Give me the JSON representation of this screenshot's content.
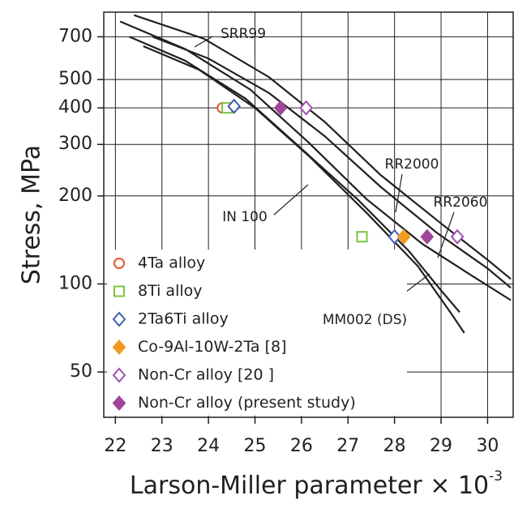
{
  "chart_data": {
    "type": "scatter",
    "ylabel": "Stress, MPa",
    "xlabel": "Larson-Miller parameter × 10",
    "xlabel_superscript": "-3",
    "xlim": [
      21.75,
      30.55
    ],
    "ylim": [
      35,
      850
    ],
    "xticks": [
      22,
      23,
      24,
      25,
      26,
      27,
      28,
      29,
      30
    ],
    "yticks": [
      50,
      100,
      200,
      300,
      400,
      500,
      700
    ],
    "ylog": true,
    "grid": true,
    "legend": "lower left",
    "series": [
      {
        "name": "4Ta alloy",
        "color": "#e8542a",
        "marker": "circle",
        "filled": false,
        "x": [
          24.3
        ],
        "values": [
          400
        ]
      },
      {
        "name": "8Ti alloy",
        "color": "#7cc242",
        "marker": "square",
        "filled": false,
        "x": [
          24.4,
          27.3
        ],
        "values": [
          400,
          145
        ]
      },
      {
        "name": "2Ta6Ti alloy",
        "color": "#3f5fb0",
        "marker": "diamond",
        "filled": false,
        "x": [
          24.55,
          28.0
        ],
        "values": [
          405,
          145
        ]
      },
      {
        "name": "Co-9Al-10W-2Ta [8]",
        "color": "#f39a1e",
        "marker": "diamond",
        "filled": true,
        "x": [
          28.2
        ],
        "values": [
          145
        ]
      },
      {
        "name": "Non-Cr alloy [20 ]",
        "color": "#a050b0",
        "marker": "diamond",
        "filled": false,
        "x": [
          26.1,
          29.35
        ],
        "values": [
          400,
          145
        ]
      },
      {
        "name": "Non-Cr alloy (present study)",
        "color": "#a0459a",
        "marker": "diamond",
        "filled": true,
        "x": [
          25.55,
          28.7
        ],
        "values": [
          400,
          145
        ]
      }
    ],
    "curves": [
      {
        "name": "SRR99",
        "color": "#231f20",
        "x": [
          22.4,
          23.9,
          25.3,
          26.5,
          27.7,
          29.0,
          30.0,
          30.5
        ],
        "values": [
          830,
          690,
          510,
          358,
          236,
          161,
          121,
          104
        ]
      },
      {
        "name": "RR2000",
        "color": "#231f20",
        "x": [
          22.8,
          24.0,
          25.3,
          26.5,
          27.7,
          28.9,
          30.0,
          30.5
        ],
        "values": [
          700,
          590,
          450,
          320,
          215,
          150,
          113,
          97
        ]
      },
      {
        "name": "RR2060",
        "color": "#231f20",
        "x": [
          22.1,
          23.5,
          24.9,
          26.15,
          27.4,
          28.6,
          29.65,
          30.5
        ],
        "values": [
          790,
          636,
          462,
          305,
          195,
          137,
          107,
          88
        ]
      },
      {
        "name": "IN 100",
        "color": "#231f20",
        "x": [
          22.3,
          23.5,
          24.8,
          26.0,
          27.2,
          28.3,
          29.0,
          29.4
        ],
        "values": [
          700,
          580,
          430,
          290,
          195,
          130,
          95,
          80
        ]
      },
      {
        "name": "MM002 (DS)",
        "color": "#231f20",
        "x": [
          22.6,
          23.8,
          25.0,
          26.2,
          27.4,
          28.5,
          29.2,
          29.5
        ],
        "values": [
          650,
          540,
          400,
          270,
          175,
          115,
          80,
          68
        ]
      }
    ]
  }
}
